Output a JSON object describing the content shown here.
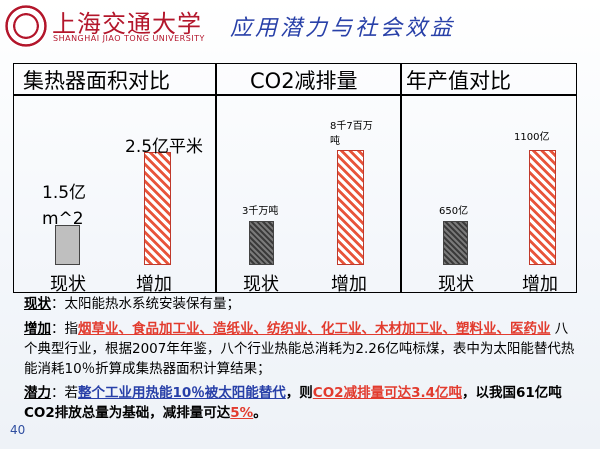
{
  "header": {
    "logo_cn": "上海交通大学",
    "logo_en": "SHANGHAI JIAO TONG UNIVERSITY",
    "title": "应用潜力与社会效益"
  },
  "table": {
    "col1": {
      "heading": "集热器面积对比",
      "bar1_label": "1.5亿m^2",
      "bar2_label": "2.5亿平米",
      "cat1": "现状",
      "cat2": "增加"
    },
    "col2": {
      "heading": "CO2减排量",
      "bar1_label": "3千万吨",
      "bar2_label": "8千7百万吨",
      "cat1": "现状",
      "cat2": "增加"
    },
    "col3": {
      "heading": "年产值对比",
      "bar1_label": "650亿",
      "bar2_label": "1100亿",
      "cat1": "现状",
      "cat2": "增加"
    }
  },
  "chart_data": [
    {
      "type": "bar",
      "title": "集热器面积对比",
      "categories": [
        "现状",
        "增加"
      ],
      "values": [
        1.5,
        2.5
      ],
      "data_labels": [
        "1.5亿m^2",
        "2.5亿平米"
      ]
    },
    {
      "type": "bar",
      "title": "CO2减排量",
      "categories": [
        "现状",
        "增加"
      ],
      "values": [
        3,
        8.7
      ],
      "data_labels": [
        "3千万吨",
        "8千7百万吨"
      ]
    },
    {
      "type": "bar",
      "title": "年产值对比",
      "categories": [
        "现状",
        "增加"
      ],
      "values": [
        650,
        1100
      ],
      "data_labels": [
        "650亿",
        "1100亿"
      ]
    }
  ],
  "notes": {
    "status_key": "现状",
    "status_text": "：太阳能热水系统安装保有量；",
    "increase_key": "增加",
    "increase_prefix": "：指",
    "industries": "烟草业、食品加工业、造纸业、纺织业、化工业、木材加工业、塑料业、医药业",
    "increase_text": " 八个典型行业，根据2007年年鉴，八个行业热能总消耗为2.26亿吨标煤，表中为太阳能替代热能消耗10％折算成集热器面积计算结果；",
    "potential_key": "潜力",
    "potential_prefix": "：若",
    "potential_blue": "整个工业用热能10％被太阳能替代",
    "potential_mid": "，则",
    "potential_red": "CO2减排量可达3.4亿吨",
    "potential_tail": "，以我国61亿吨CO2排放总量为基础，减排量可达",
    "potential_pct": "5%",
    "potential_end": "。"
  },
  "page_number": "40"
}
